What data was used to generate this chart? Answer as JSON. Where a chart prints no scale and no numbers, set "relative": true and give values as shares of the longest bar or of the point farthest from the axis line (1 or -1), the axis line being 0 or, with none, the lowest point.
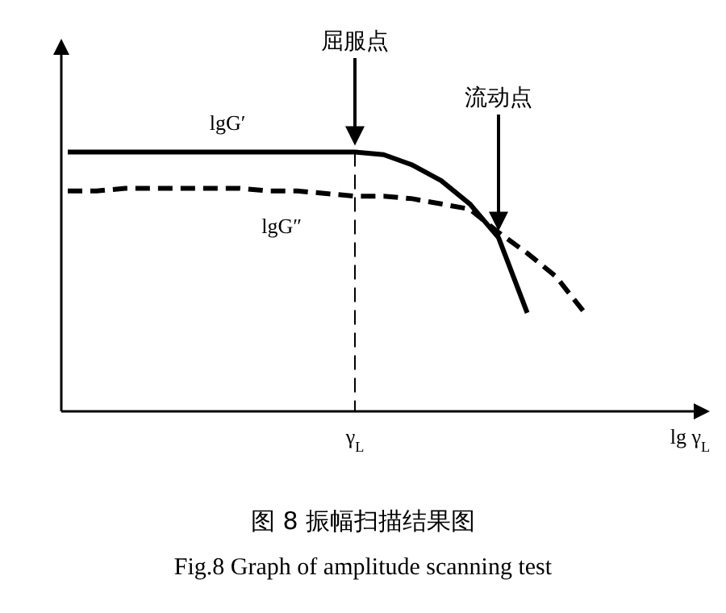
{
  "chart_data": {
    "type": "line",
    "title": "图 8 振幅扫描结果图",
    "subtitle": "Fig.8 Graph of amplitude scanning test",
    "xlabel": "lg γ$_{L}$",
    "relative": true,
    "legend": false,
    "marker": "none",
    "categories": [
      null,
      null,
      null,
      null,
      null,
      null,
      null,
      null,
      null,
      null,
      null,
      null,
      null,
      null,
      null,
      null,
      null,
      null,
      null
    ],
    "series": [
      {
        "name": "lgG′",
        "color": "#000000",
        "line_style": "solid",
        "values": [
          1,
          1,
          1,
          1,
          1,
          1,
          1,
          1,
          1,
          1,
          1,
          0.99,
          0.95,
          0.89,
          0.8,
          0.67,
          0.38,
          null,
          null
        ]
      },
      {
        "name": "lgG″",
        "color": "#000000",
        "line_style": "dashed",
        "values": [
          0.85,
          0.85,
          0.86,
          0.86,
          0.86,
          0.86,
          0.86,
          0.85,
          0.85,
          0.84,
          0.83,
          0.83,
          0.82,
          0.8,
          0.78,
          0.69,
          0.61,
          0.52,
          0.38
        ]
      }
    ],
    "ref_lines": [
      {
        "axis": "x",
        "label": "γ$_{L}$",
        "line_style": "dashed",
        "color": "#000000"
      }
    ],
    "annotations": [
      "屈服点",
      "流动点"
    ]
  }
}
